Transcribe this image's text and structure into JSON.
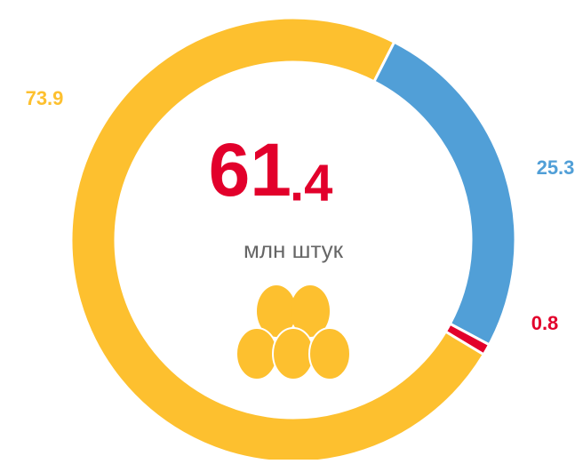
{
  "chart_data": {
    "type": "donut",
    "values": [
      73.9,
      25.3,
      0.8
    ],
    "colors": [
      "#fdc02f",
      "#519fd7",
      "#e2002b"
    ],
    "center_integer": "61",
    "center_fraction": ".4",
    "unit": "млн штук"
  }
}
